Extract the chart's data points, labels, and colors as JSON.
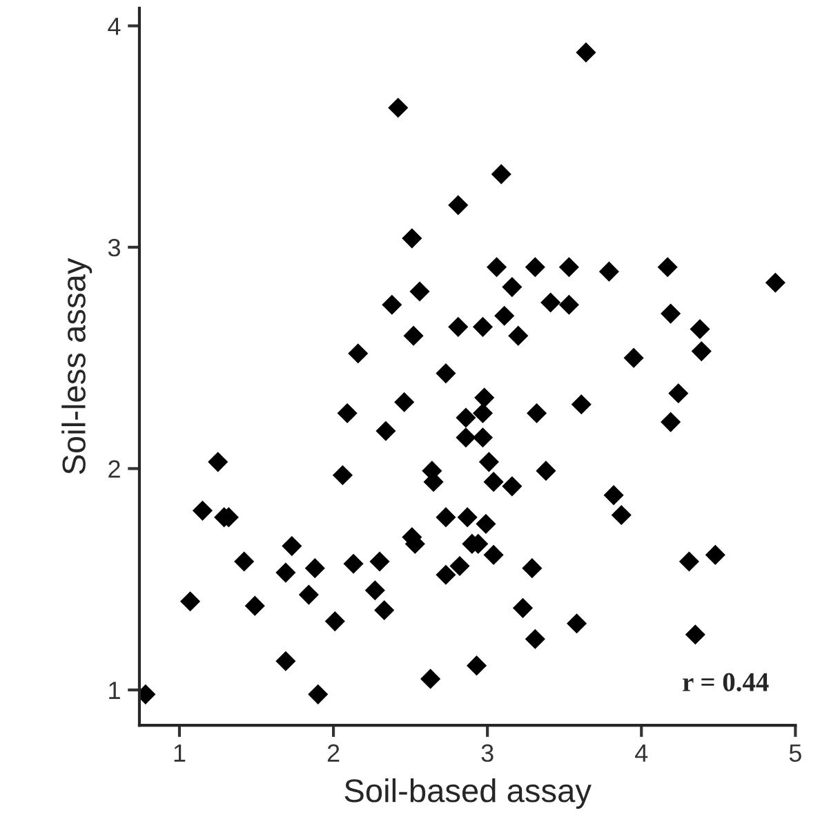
{
  "chart_data": {
    "type": "scatter",
    "xlabel": "Soil-based assay",
    "ylabel": "Soil-less assay",
    "annotations": [
      "r = 0.44"
    ],
    "xlim": [
      0.74,
      5.0
    ],
    "ylim": [
      0.84,
      4.08
    ],
    "xticks": [
      1,
      2,
      3,
      4,
      5
    ],
    "yticks": [
      1,
      2,
      3,
      4
    ],
    "grid": false,
    "marker": "diamond",
    "series": [
      {
        "color": "#000000",
        "x": [
          0.78,
          1.07,
          1.15,
          1.25,
          1.29,
          1.32,
          1.42,
          1.49,
          1.69,
          1.69,
          1.73,
          1.84,
          1.88,
          1.9,
          2.01,
          2.06,
          2.09,
          2.13,
          2.16,
          2.27,
          2.3,
          2.33,
          2.34,
          2.38,
          2.46,
          2.42,
          2.51,
          2.52,
          2.51,
          2.53,
          2.56,
          2.64,
          2.65,
          2.63,
          2.73,
          2.73,
          2.81,
          2.81,
          2.73,
          2.82,
          2.87,
          2.86,
          2.86,
          2.9,
          2.94,
          2.93,
          2.97,
          2.97,
          2.97,
          2.98,
          2.99,
          3.01,
          3.04,
          3.04,
          3.06,
          3.09,
          3.11,
          3.16,
          3.16,
          3.2,
          3.23,
          3.29,
          3.31,
          3.31,
          3.32,
          3.41,
          3.38,
          3.53,
          3.53,
          3.58,
          3.61,
          3.64,
          3.79,
          3.82,
          3.87,
          3.95,
          4.17,
          4.19,
          4.19,
          4.24,
          4.31,
          4.35,
          4.38,
          4.39,
          4.48,
          4.87
        ],
        "values": [
          0.98,
          1.4,
          1.81,
          2.03,
          1.78,
          1.78,
          1.58,
          1.38,
          1.13,
          1.53,
          1.65,
          1.43,
          1.55,
          0.98,
          1.31,
          1.97,
          2.25,
          1.57,
          2.52,
          1.45,
          1.58,
          1.36,
          2.17,
          2.74,
          2.3,
          3.63,
          3.04,
          2.6,
          1.69,
          1.66,
          2.8,
          1.99,
          1.94,
          1.05,
          2.43,
          1.78,
          3.19,
          2.64,
          1.52,
          1.56,
          1.78,
          2.23,
          2.14,
          1.66,
          1.66,
          1.11,
          2.64,
          2.25,
          2.14,
          2.32,
          1.75,
          2.03,
          1.94,
          1.61,
          2.91,
          3.33,
          2.69,
          1.92,
          2.82,
          2.6,
          1.37,
          1.55,
          1.23,
          2.91,
          2.25,
          2.75,
          1.99,
          2.74,
          2.91,
          1.3,
          2.29,
          3.88,
          2.89,
          1.88,
          1.79,
          2.5,
          2.91,
          2.7,
          2.21,
          2.34,
          1.58,
          1.25,
          2.63,
          2.53,
          1.61,
          2.84
        ]
      }
    ]
  }
}
